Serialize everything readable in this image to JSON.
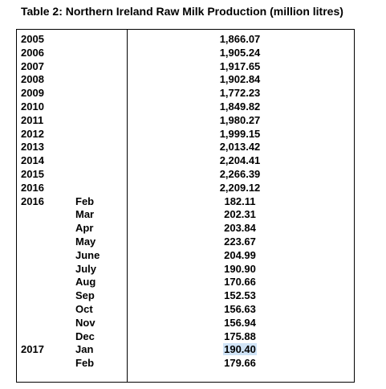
{
  "title": "Table 2: Northern Ireland Raw Milk Production (million litres)",
  "rows": [
    {
      "year": "2005",
      "month": "",
      "value": "1,866.07"
    },
    {
      "year": "2006",
      "month": "",
      "value": "1,905.24"
    },
    {
      "year": "2007",
      "month": "",
      "value": "1,917.65"
    },
    {
      "year": "2008",
      "month": "",
      "value": "1,902.84"
    },
    {
      "year": "2009",
      "month": "",
      "value": "1,772.23"
    },
    {
      "year": "2010",
      "month": "",
      "value": "1,849.82"
    },
    {
      "year": "2011",
      "month": "",
      "value": "1,980.27"
    },
    {
      "year": "2012",
      "month": "",
      "value": "1,999.15"
    },
    {
      "year": "2013",
      "month": "",
      "value": "2,013.42"
    },
    {
      "year": "2014",
      "month": "",
      "value": "2,204.41"
    },
    {
      "year": "2015",
      "month": "",
      "value": "2,266.39"
    },
    {
      "year": "2016",
      "month": "",
      "value": "2,209.12"
    },
    {
      "year": "2016",
      "month": "Feb",
      "value": "182.11"
    },
    {
      "year": "",
      "month": "Mar",
      "value": "202.31"
    },
    {
      "year": "",
      "month": "Apr",
      "value": "203.84"
    },
    {
      "year": "",
      "month": "May",
      "value": "223.67"
    },
    {
      "year": "",
      "month": "June",
      "value": "204.99"
    },
    {
      "year": "",
      "month": "July",
      "value": "190.90"
    },
    {
      "year": "",
      "month": "Aug",
      "value": "170.66"
    },
    {
      "year": "",
      "month": "Sep",
      "value": "152.53"
    },
    {
      "year": "",
      "month": "Oct",
      "value": "156.63"
    },
    {
      "year": "",
      "month": "Nov",
      "value": "156.94"
    },
    {
      "year": "",
      "month": "Dec",
      "value": "175.88"
    },
    {
      "year": "2017",
      "month": "Jan",
      "value": "190.40",
      "selected": true
    },
    {
      "year": "",
      "month": "Feb",
      "value": "179.66"
    }
  ],
  "colors": {
    "text": "#000000",
    "border": "#000000",
    "selection": "#cfe3f6"
  }
}
